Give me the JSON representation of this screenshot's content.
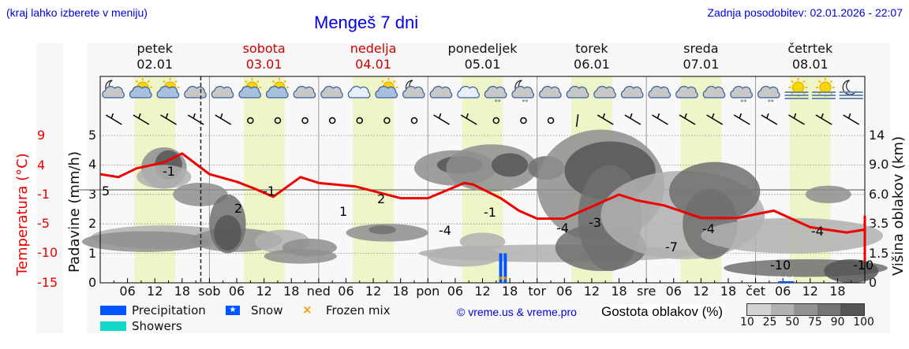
{
  "header": {
    "region_hint": "(kraj lahko izberete v meniju)",
    "title": "Mengeš 7 dni",
    "last_update": "Zadnja posodobitev: 02.01.2026 - 22:07"
  },
  "days": [
    {
      "name": "petek",
      "date": "02.01",
      "weekend": false
    },
    {
      "name": "sobota",
      "date": "03.01",
      "weekend": true
    },
    {
      "name": "nedelja",
      "date": "04.01",
      "weekend": true
    },
    {
      "name": "ponedeljek",
      "date": "05.01",
      "weekend": false
    },
    {
      "name": "torek",
      "date": "06.01",
      "weekend": false
    },
    {
      "name": "sreda",
      "date": "07.01",
      "weekend": false
    },
    {
      "name": "četrtek",
      "date": "08.01",
      "weekend": false
    }
  ],
  "weather_icons": [
    "moon-cloud",
    "sun-cloud",
    "sun-cloud",
    "cloud",
    "cloud",
    "sun-cloud",
    "sun-cloud",
    "cloud",
    "cloud",
    "cloud-blue",
    "sun-cloud",
    "moon-cloud",
    "cloud",
    "cloud-blue",
    "cloud-snow",
    "moon-cloud-snow",
    "cloud",
    "cloud",
    "cloud",
    "cloud",
    "cloud",
    "cloud",
    "cloud",
    "cloud-snow",
    "cloud-snow",
    "sun-fog",
    "sun-fog",
    "moon-fog"
  ],
  "axes": {
    "left_precip_title": "Padavine (mm/h)",
    "left_temp_title": "Temperatura (°C)",
    "right_title": "Višina oblakov (km)",
    "precip_ticks": [
      "0",
      "1",
      "2",
      "3",
      "4",
      "5"
    ],
    "temp_ticks": [
      "-15",
      "-10",
      "-5",
      "-1",
      "4",
      "9"
    ],
    "cloud_height_ticks": [
      "0",
      "1.5",
      "3.5",
      "6.0",
      "9.0",
      "14"
    ],
    "x_ticks": [
      "06",
      "12",
      "18",
      "sob",
      "06",
      "12",
      "18",
      "ned",
      "06",
      "12",
      "18",
      "pon",
      "06",
      "12",
      "18",
      "tor",
      "06",
      "12",
      "18",
      "sre",
      "06",
      "12",
      "18",
      "čet",
      "06",
      "12",
      "18"
    ]
  },
  "legend": {
    "precipitation": "Precipitation",
    "showers": "Showers",
    "snow": "Snow",
    "frozen_mix": "Frozen mix",
    "credit": "© vreme.us & vreme.pro",
    "density_title": "Gostota oblakov (%)",
    "density_ticks": [
      "10",
      "25",
      "50",
      "75",
      "90",
      "100"
    ]
  },
  "colors": {
    "title_blue": "#0000e0",
    "temp_red": "#ee0000",
    "precip_blue": "#0055ff",
    "showers_teal": "#11d8c8",
    "frozen_orange": "#f0a000",
    "daylight": "#eef5c8",
    "density": [
      "#d2d2d2",
      "#b0b0b0",
      "#8e8e8e",
      "#707070",
      "#555555"
    ]
  },
  "chart_data": {
    "type": "line",
    "title": "Mengeš 7 dni",
    "xlabel": "",
    "ylabel": "Temperatura (°C)",
    "x_unit": "hours since 02.01 00:00",
    "series": [
      {
        "name": "Temperatura (°C)",
        "x": [
          0,
          4,
          8,
          14,
          18,
          24,
          30,
          34,
          38,
          44,
          48,
          56,
          66,
          72,
          80,
          82,
          88,
          92,
          96,
          102,
          114,
          118,
          124,
          132,
          140,
          148,
          156,
          164,
          170,
          174,
          180,
          184,
          190,
          198,
          206,
          212,
          216,
          222,
          226,
          234,
          238,
          242,
          246,
          250
        ],
        "values": [
          2.5,
          2.0,
          3.5,
          4.5,
          6.0,
          2.5,
          1.2,
          0,
          -1.3,
          2.0,
          1.0,
          0.4,
          -1.5,
          -1.5,
          1.0,
          0.7,
          -1.5,
          -3.2,
          -4.3,
          -4.3,
          -1.0,
          -1.8,
          -2.5,
          -4.2,
          -4.2,
          -3.2,
          -5.6,
          -6.5,
          -6.0,
          -4.5,
          -4.0,
          -6.5,
          -8.3,
          -10.1,
          -10.1,
          -6.0,
          -4.0,
          -5.0,
          -8.0,
          -9.9,
          -10.6,
          -11.0,
          -11.2,
          -11.5
        ]
      }
    ],
    "temp_labels": [
      {
        "x": 2,
        "label": "2"
      },
      {
        "x": 16,
        "label": "5"
      },
      {
        "x": 30,
        "label": "-1"
      },
      {
        "x": 40,
        "label": "2"
      },
      {
        "x": 54,
        "label": "-1"
      },
      {
        "x": 66,
        "label": "1"
      },
      {
        "x": 78,
        "label": "-4"
      },
      {
        "x": 90,
        "label": "-1"
      },
      {
        "x": 102,
        "label": "-4"
      },
      {
        "x": 110,
        "label": "-3"
      },
      {
        "x": 132,
        "label": "-7"
      },
      {
        "x": 136,
        "label": "-4"
      },
      {
        "x": 150,
        "label": "-10"
      },
      {
        "x": 158,
        "label": "-4"
      },
      {
        "x": 168,
        "label": "-10"
      }
    ],
    "precipitation": [
      {
        "x": 88,
        "mm_h": 1.0,
        "type": "frozen mix"
      },
      {
        "x": 89,
        "mm_h": 1.0,
        "type": "frozen mix"
      },
      {
        "x": 150,
        "mm_h": 0.05,
        "type": "snow"
      }
    ],
    "y_ranges": {
      "precip_mm_h": [
        0,
        5.2
      ],
      "temp_c": [
        -15,
        9
      ],
      "cloud_height_km": [
        0,
        14
      ]
    },
    "grid": true,
    "legend_position": "bottom"
  }
}
